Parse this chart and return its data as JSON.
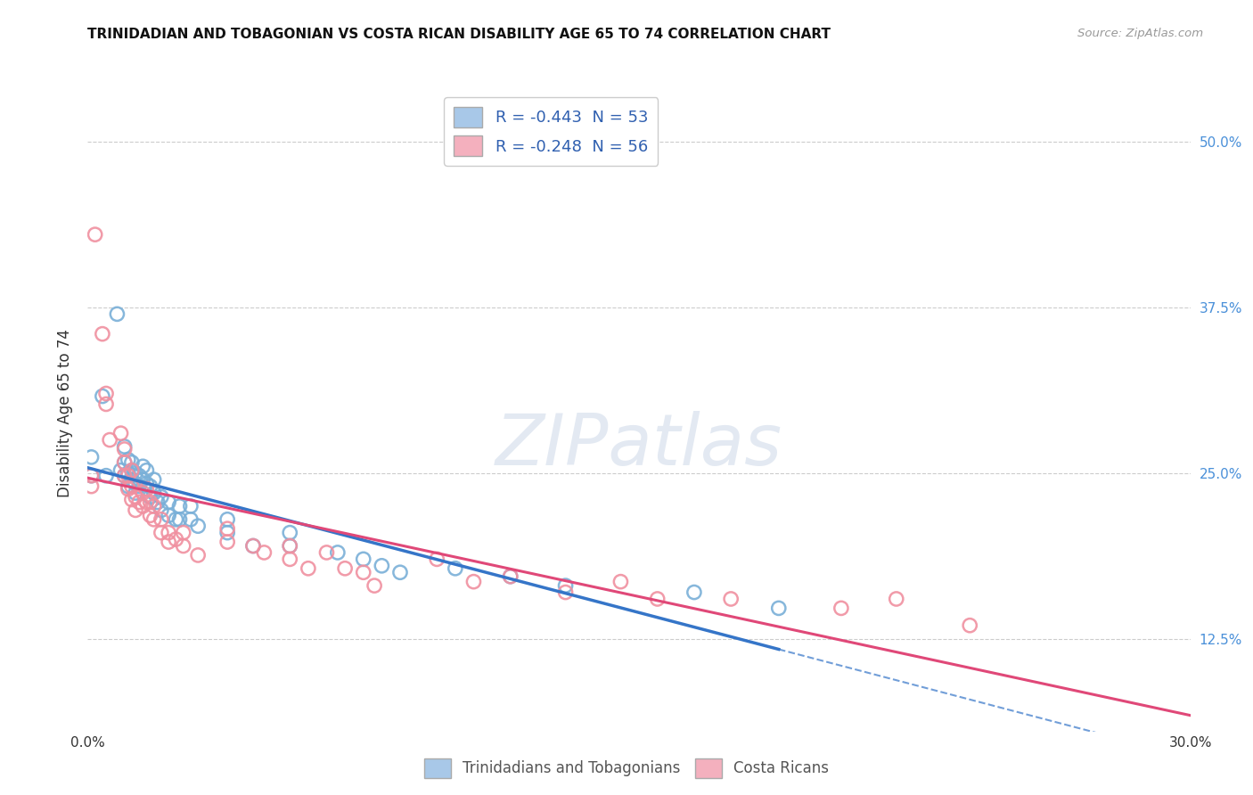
{
  "title": "TRINIDADIAN AND TOBAGONIAN VS COSTA RICAN DISABILITY AGE 65 TO 74 CORRELATION CHART",
  "source": "Source: ZipAtlas.com",
  "ylabel": "Disability Age 65 to 74",
  "xmin": 0.0,
  "xmax": 0.3,
  "ymin": 0.055,
  "ymax": 0.535,
  "yticks": [
    0.125,
    0.25,
    0.375,
    0.5
  ],
  "ytick_labels": [
    "12.5%",
    "25.0%",
    "37.5%",
    "50.0%"
  ],
  "xtick_labels": [
    "0.0%",
    "30.0%"
  ],
  "legend_entries": [
    {
      "label": "R = -0.443  N = 53",
      "color": "#a8c8e8"
    },
    {
      "label": "R = -0.248  N = 56",
      "color": "#f4b0be"
    }
  ],
  "series1_color": "#7ab0d8",
  "series2_color": "#f090a0",
  "line1_color": "#3575c8",
  "line2_color": "#e04878",
  "watermark_text": "ZIPatlas",
  "background_color": "#ffffff",
  "grid_color": "#cccccc",
  "series1_points": [
    [
      0.001,
      0.248
    ],
    [
      0.001,
      0.262
    ],
    [
      0.004,
      0.308
    ],
    [
      0.005,
      0.248
    ],
    [
      0.008,
      0.37
    ],
    [
      0.009,
      0.252
    ],
    [
      0.01,
      0.258
    ],
    [
      0.01,
      0.27
    ],
    [
      0.01,
      0.248
    ],
    [
      0.011,
      0.24
    ],
    [
      0.011,
      0.25
    ],
    [
      0.011,
      0.26
    ],
    [
      0.012,
      0.245
    ],
    [
      0.012,
      0.252
    ],
    [
      0.012,
      0.258
    ],
    [
      0.013,
      0.235
    ],
    [
      0.013,
      0.242
    ],
    [
      0.013,
      0.25
    ],
    [
      0.014,
      0.24
    ],
    [
      0.014,
      0.248
    ],
    [
      0.015,
      0.255
    ],
    [
      0.015,
      0.245
    ],
    [
      0.016,
      0.242
    ],
    [
      0.016,
      0.252
    ],
    [
      0.017,
      0.232
    ],
    [
      0.017,
      0.24
    ],
    [
      0.018,
      0.235
    ],
    [
      0.018,
      0.245
    ],
    [
      0.019,
      0.228
    ],
    [
      0.02,
      0.222
    ],
    [
      0.02,
      0.232
    ],
    [
      0.022,
      0.218
    ],
    [
      0.022,
      0.228
    ],
    [
      0.024,
      0.215
    ],
    [
      0.025,
      0.225
    ],
    [
      0.025,
      0.215
    ],
    [
      0.028,
      0.215
    ],
    [
      0.028,
      0.225
    ],
    [
      0.03,
      0.21
    ],
    [
      0.038,
      0.215
    ],
    [
      0.038,
      0.205
    ],
    [
      0.045,
      0.195
    ],
    [
      0.055,
      0.205
    ],
    [
      0.055,
      0.195
    ],
    [
      0.068,
      0.19
    ],
    [
      0.075,
      0.185
    ],
    [
      0.08,
      0.18
    ],
    [
      0.085,
      0.175
    ],
    [
      0.1,
      0.178
    ],
    [
      0.115,
      0.172
    ],
    [
      0.13,
      0.165
    ],
    [
      0.165,
      0.16
    ],
    [
      0.188,
      0.148
    ]
  ],
  "series2_points": [
    [
      0.001,
      0.24
    ],
    [
      0.001,
      0.248
    ],
    [
      0.002,
      0.43
    ],
    [
      0.004,
      0.355
    ],
    [
      0.005,
      0.302
    ],
    [
      0.005,
      0.31
    ],
    [
      0.006,
      0.275
    ],
    [
      0.009,
      0.28
    ],
    [
      0.01,
      0.248
    ],
    [
      0.01,
      0.258
    ],
    [
      0.01,
      0.268
    ],
    [
      0.011,
      0.238
    ],
    [
      0.011,
      0.248
    ],
    [
      0.012,
      0.23
    ],
    [
      0.012,
      0.24
    ],
    [
      0.012,
      0.252
    ],
    [
      0.013,
      0.222
    ],
    [
      0.013,
      0.232
    ],
    [
      0.014,
      0.228
    ],
    [
      0.015,
      0.235
    ],
    [
      0.015,
      0.225
    ],
    [
      0.016,
      0.238
    ],
    [
      0.016,
      0.228
    ],
    [
      0.017,
      0.218
    ],
    [
      0.017,
      0.228
    ],
    [
      0.018,
      0.215
    ],
    [
      0.018,
      0.225
    ],
    [
      0.02,
      0.215
    ],
    [
      0.02,
      0.205
    ],
    [
      0.022,
      0.205
    ],
    [
      0.022,
      0.198
    ],
    [
      0.024,
      0.2
    ],
    [
      0.026,
      0.195
    ],
    [
      0.026,
      0.205
    ],
    [
      0.03,
      0.188
    ],
    [
      0.038,
      0.198
    ],
    [
      0.038,
      0.208
    ],
    [
      0.045,
      0.195
    ],
    [
      0.048,
      0.19
    ],
    [
      0.055,
      0.195
    ],
    [
      0.055,
      0.185
    ],
    [
      0.06,
      0.178
    ],
    [
      0.065,
      0.19
    ],
    [
      0.07,
      0.178
    ],
    [
      0.075,
      0.175
    ],
    [
      0.078,
      0.165
    ],
    [
      0.095,
      0.185
    ],
    [
      0.105,
      0.168
    ],
    [
      0.115,
      0.172
    ],
    [
      0.13,
      0.16
    ],
    [
      0.145,
      0.168
    ],
    [
      0.155,
      0.155
    ],
    [
      0.175,
      0.155
    ],
    [
      0.205,
      0.148
    ],
    [
      0.22,
      0.155
    ],
    [
      0.24,
      0.135
    ]
  ],
  "line1_x_solid_end": 0.188,
  "line1_x_dashed_end": 0.3,
  "line2_x_end": 0.3
}
